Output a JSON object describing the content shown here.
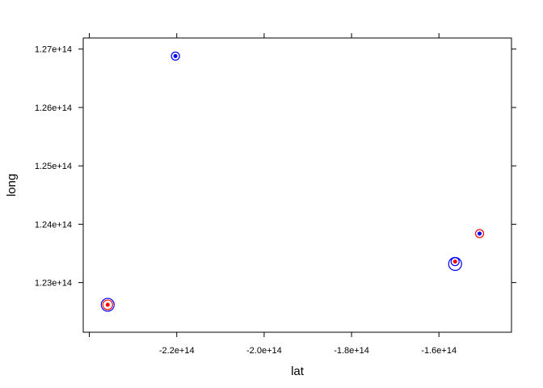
{
  "chart_data": {
    "type": "scatter",
    "title": "",
    "xlabel": "lat",
    "ylabel": "long",
    "xlim": [
      -241400000000000.0,
      -143400000000000.0
    ],
    "ylim": [
      122150000000000.0,
      127190000000000.0
    ],
    "xticks": [
      -220000000000000.0,
      -200000000000000.0,
      -180000000000000.0,
      -160000000000000.0
    ],
    "xtick_labels": [
      "-2.2e+14",
      "-2.0e+14",
      "-1.8e+14",
      "-1.6e+14"
    ],
    "yticks": [
      123000000000000.0,
      124000000000000.0,
      125000000000000.0,
      126000000000000.0,
      127000000000000.0
    ],
    "ytick_labels": [
      "1.23e+14",
      "1.24e+14",
      "1.25e+14",
      "1.26e+14",
      "1.27e+14"
    ],
    "grid": false,
    "legend": "none",
    "colors": {
      "outer_ring": "#0000ff",
      "inner_ring": "#ff0000",
      "center_point": "#ff0000"
    },
    "points": [
      {
        "lat": -220300000000000.0,
        "long": 126880000000000.0,
        "ring": "outer",
        "size": "small",
        "color": "#0000ff"
      },
      {
        "lat": -220300000000000.0,
        "long": 126880000000000.0,
        "ring": "outer",
        "size": "dot",
        "color": "#0000ff"
      },
      {
        "lat": -235800000000000.0,
        "long": 122620000000000.0,
        "ring": "outer",
        "size": "large",
        "color": "#0000ff"
      },
      {
        "lat": -235800000000000.0,
        "long": 122620000000000.0,
        "ring": "inner",
        "size": "medium",
        "color": "#ff0000"
      },
      {
        "lat": -235800000000000.0,
        "long": 122620000000000.0,
        "ring": "center",
        "size": "dot",
        "color": "#ff0000"
      },
      {
        "lat": -156300000000000.0,
        "long": 123320000000000.0,
        "ring": "outer",
        "size": "large",
        "color": "#0000ff"
      },
      {
        "lat": -156300000000000.0,
        "long": 123360000000000.0,
        "ring": "inner",
        "size": "small",
        "color": "#0000ff"
      },
      {
        "lat": -156300000000000.0,
        "long": 123360000000000.0,
        "ring": "center",
        "size": "dot",
        "color": "#ff0000"
      },
      {
        "lat": -150700000000000.0,
        "long": 123840000000000.0,
        "ring": "outer",
        "size": "small",
        "color": "#ff0000"
      },
      {
        "lat": -150700000000000.0,
        "long": 123840000000000.0,
        "ring": "center",
        "size": "dot",
        "color": "#0000ff"
      }
    ]
  }
}
